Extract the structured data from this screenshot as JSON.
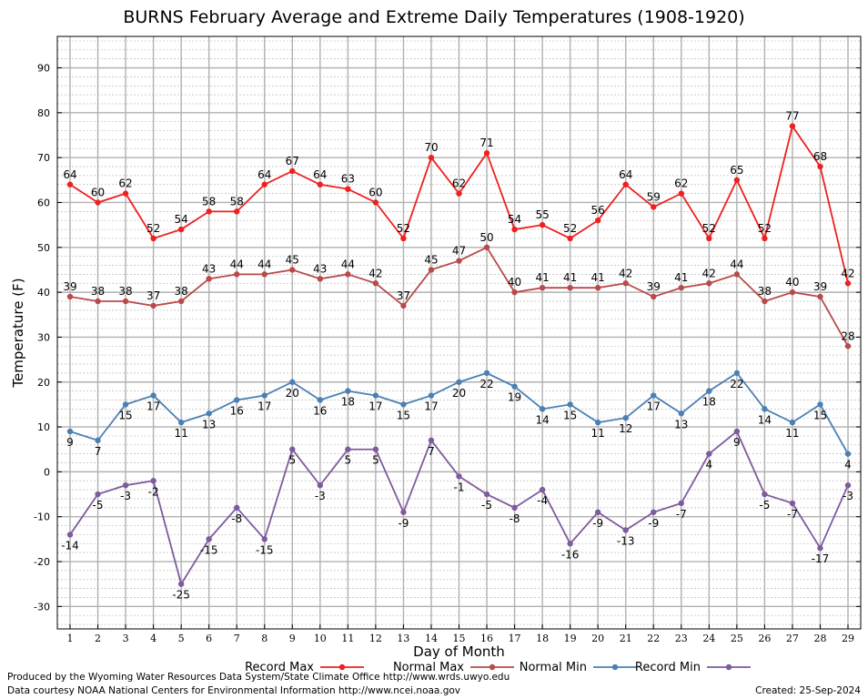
{
  "chart_data": {
    "type": "line",
    "title": "BURNS February Average and Extreme Daily Temperatures (1908-1920)",
    "xlabel": "Day of Month",
    "ylabel": "Temperature (F)",
    "x": [
      1,
      2,
      3,
      4,
      5,
      6,
      7,
      8,
      9,
      10,
      11,
      12,
      13,
      14,
      15,
      16,
      17,
      18,
      19,
      20,
      21,
      22,
      23,
      24,
      25,
      26,
      27,
      28,
      29
    ],
    "ylim": [
      -35,
      97
    ],
    "yticks": [
      -30,
      -20,
      -10,
      0,
      10,
      20,
      30,
      40,
      50,
      60,
      70,
      80,
      90
    ],
    "grid": true,
    "legend_position": "bottom",
    "series": [
      {
        "name": "Record Max",
        "color": "#ee2020",
        "values": [
          64,
          60,
          62,
          52,
          54,
          58,
          58,
          64,
          67,
          64,
          63,
          60,
          52,
          70,
          62,
          71,
          54,
          55,
          52,
          56,
          64,
          59,
          62,
          52,
          65,
          52,
          77,
          68,
          42
        ]
      },
      {
        "name": "Normal Max",
        "color": "#b94a4a",
        "values": [
          39,
          38,
          38,
          37,
          38,
          43,
          44,
          44,
          45,
          43,
          44,
          42,
          37,
          45,
          47,
          50,
          40,
          41,
          41,
          41,
          42,
          39,
          41,
          42,
          44,
          38,
          40,
          39,
          28
        ]
      },
      {
        "name": "Normal Min",
        "color": "#4a80b4",
        "values": [
          9,
          7,
          15,
          17,
          11,
          13,
          16,
          17,
          20,
          16,
          18,
          17,
          15,
          17,
          20,
          22,
          19,
          14,
          15,
          11,
          12,
          17,
          13,
          18,
          22,
          14,
          11,
          15,
          4
        ]
      },
      {
        "name": "Record Min",
        "color": "#7e5a9e",
        "values": [
          -14,
          -5,
          -3,
          -2,
          -25,
          -15,
          -8,
          -15,
          5,
          -3,
          5,
          5,
          -9,
          7,
          -1,
          -5,
          -8,
          -4,
          -16,
          -9,
          -13,
          -9,
          -7,
          4,
          9,
          -5,
          -7,
          -17,
          -3
        ]
      }
    ]
  },
  "footer": {
    "produced_by": "Produced by the Wyoming Water Resources Data System/State Climate Office http://www.wrds.uwyo.edu",
    "data_courtesy": "Data courtesy NOAA National Centers for Environmental Information http://www.ncei.noaa.gov",
    "created": "Created: 25-Sep-2024"
  }
}
